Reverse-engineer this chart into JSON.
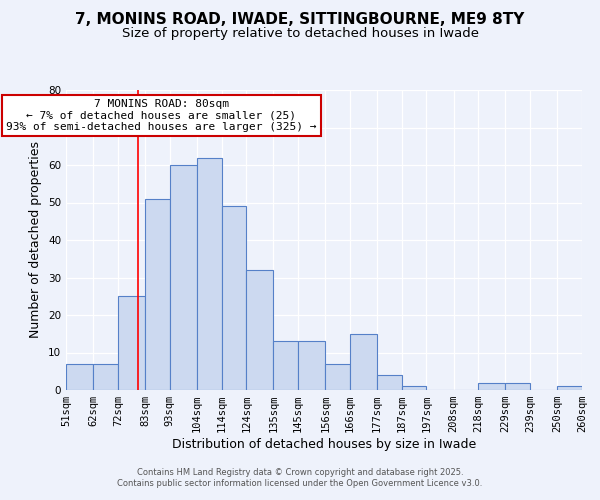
{
  "title": "7, MONINS ROAD, IWADE, SITTINGBOURNE, ME9 8TY",
  "subtitle": "Size of property relative to detached houses in Iwade",
  "xlabel": "Distribution of detached houses by size in Iwade",
  "ylabel": "Number of detached properties",
  "bin_labels": [
    "51sqm",
    "62sqm",
    "72sqm",
    "83sqm",
    "93sqm",
    "104sqm",
    "114sqm",
    "124sqm",
    "135sqm",
    "145sqm",
    "156sqm",
    "166sqm",
    "177sqm",
    "187sqm",
    "197sqm",
    "208sqm",
    "218sqm",
    "229sqm",
    "239sqm",
    "250sqm",
    "260sqm"
  ],
  "bin_edges": [
    51,
    62,
    72,
    83,
    93,
    104,
    114,
    124,
    135,
    145,
    156,
    166,
    177,
    187,
    197,
    208,
    218,
    229,
    239,
    250,
    260
  ],
  "bar_heights": [
    7,
    7,
    25,
    51,
    60,
    62,
    49,
    32,
    13,
    13,
    7,
    15,
    4,
    1,
    0,
    0,
    2,
    2,
    0,
    1,
    0
  ],
  "bar_color": "#ccd9f0",
  "bar_edge_color": "#5580c8",
  "red_line_x": 80,
  "ylim": [
    0,
    80
  ],
  "yticks": [
    0,
    10,
    20,
    30,
    40,
    50,
    60,
    70,
    80
  ],
  "annotation_title": "7 MONINS ROAD: 80sqm",
  "annotation_line1": "← 7% of detached houses are smaller (25)",
  "annotation_line2": "93% of semi-detached houses are larger (325) →",
  "annotation_box_color": "#ffffff",
  "annotation_box_edge": "#cc0000",
  "footer_line1": "Contains HM Land Registry data © Crown copyright and database right 2025.",
  "footer_line2": "Contains public sector information licensed under the Open Government Licence v3.0.",
  "background_color": "#eef2fb",
  "title_fontsize": 11,
  "subtitle_fontsize": 9.5,
  "axis_label_fontsize": 9,
  "tick_fontsize": 7.5,
  "annotation_fontsize": 8,
  "footer_fontsize": 6
}
